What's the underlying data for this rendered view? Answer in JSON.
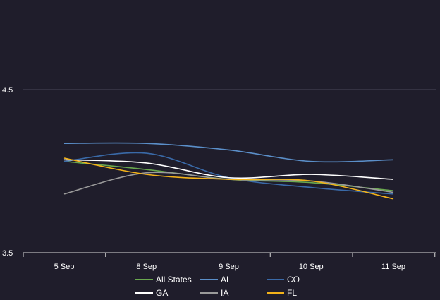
{
  "chart_data": {
    "type": "line",
    "categories": [
      "5 Sep",
      "8 Sep",
      "9 Sep",
      "10 Sep",
      "11 Sep"
    ],
    "ylim": [
      3.5,
      4.5
    ],
    "yticks": [
      "3.5",
      "4.5"
    ],
    "ytick_values": [
      3.5,
      4.5
    ],
    "grid": true,
    "legend_position": "bottom",
    "series": [
      {
        "name": "All States",
        "color": "#6aa84f",
        "values": [
          4.06,
          4.01,
          3.95,
          3.93,
          3.88
        ]
      },
      {
        "name": "AL",
        "color": "#5b8fc9",
        "values": [
          4.17,
          4.17,
          4.13,
          4.06,
          4.07
        ]
      },
      {
        "name": "CO",
        "color": "#3a6aa8",
        "values": [
          4.06,
          4.11,
          3.96,
          3.9,
          3.86
        ]
      },
      {
        "name": "GA",
        "color": "#ffffff",
        "values": [
          4.07,
          4.05,
          3.96,
          3.98,
          3.95
        ]
      },
      {
        "name": "IA",
        "color": "#9a9a9a",
        "values": [
          3.86,
          3.99,
          3.95,
          3.94,
          3.87
        ]
      },
      {
        "name": "FL",
        "color": "#f2b21a",
        "values": [
          4.08,
          3.98,
          3.95,
          3.94,
          3.83
        ]
      }
    ]
  }
}
